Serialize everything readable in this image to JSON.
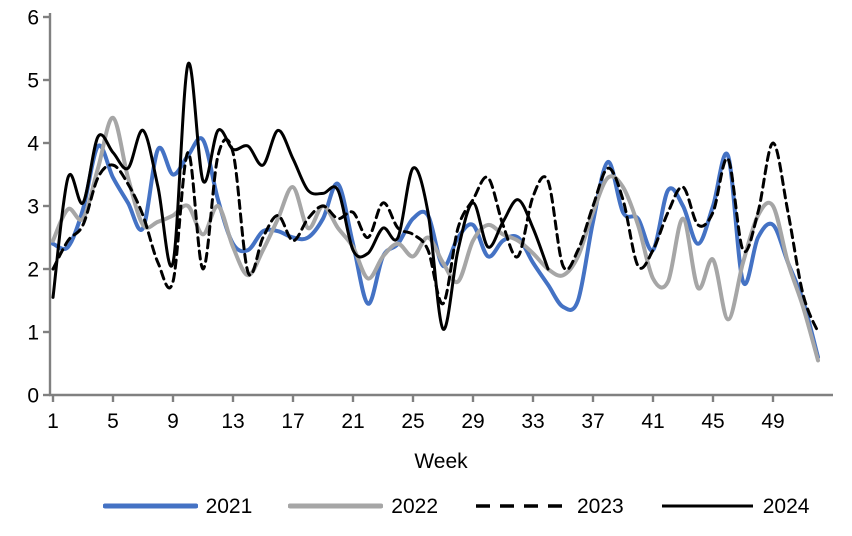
{
  "chart_data": {
    "type": "line",
    "title": "",
    "xlabel": "Week",
    "ylabel": "",
    "xlim": [
      1,
      52
    ],
    "ylim": [
      0,
      6
    ],
    "x_ticks": [
      1,
      5,
      9,
      13,
      17,
      21,
      25,
      29,
      33,
      37,
      41,
      45,
      49
    ],
    "y_ticks": [
      0,
      1,
      2,
      3,
      4,
      5,
      6
    ],
    "grid": false,
    "legend_position": "bottom",
    "axis_color": "#808080",
    "text_color": "#000000",
    "series": [
      {
        "name": "2021",
        "color": "#4472C4",
        "style": "solid",
        "width": 4,
        "values": [
          2.4,
          2.35,
          2.95,
          3.95,
          3.45,
          3.05,
          2.65,
          3.9,
          3.5,
          3.8,
          4.05,
          3.1,
          2.4,
          2.3,
          2.6,
          2.6,
          2.5,
          2.5,
          2.8,
          3.35,
          2.4,
          1.45,
          2.2,
          2.4,
          2.8,
          2.85,
          2.05,
          2.5,
          2.7,
          2.2,
          2.45,
          2.5,
          2.1,
          1.75,
          1.4,
          1.5,
          2.75,
          3.7,
          2.9,
          2.8,
          2.3,
          3.25,
          3.0,
          2.4,
          3.0,
          3.8,
          1.8,
          2.5,
          2.7,
          2.1,
          1.5,
          0.6
        ]
      },
      {
        "name": "2022",
        "color": "#A6A6A6",
        "style": "solid",
        "width": 4,
        "values": [
          2.45,
          2.95,
          2.8,
          3.6,
          4.4,
          3.45,
          2.7,
          2.75,
          2.85,
          3.0,
          2.55,
          3.0,
          2.35,
          1.9,
          2.3,
          2.8,
          3.3,
          2.65,
          3.0,
          2.65,
          2.35,
          1.85,
          2.2,
          2.4,
          2.2,
          2.5,
          2.1,
          1.8,
          2.45,
          2.7,
          2.55,
          2.45,
          2.25,
          2.0,
          1.9,
          2.2,
          2.9,
          3.45,
          3.3,
          2.7,
          1.85,
          1.8,
          2.8,
          1.7,
          2.15,
          1.2,
          2.1,
          2.85,
          3.0,
          2.1,
          1.4,
          0.55
        ]
      },
      {
        "name": "2023",
        "color": "#000000",
        "style": "dashed",
        "width": 3,
        "values": [
          2.0,
          2.45,
          2.7,
          3.45,
          3.65,
          3.35,
          2.85,
          2.1,
          1.8,
          3.85,
          2.0,
          3.8,
          3.85,
          1.95,
          2.5,
          2.85,
          2.45,
          2.8,
          3.0,
          2.8,
          2.9,
          2.5,
          3.05,
          2.65,
          2.55,
          2.3,
          1.45,
          2.65,
          3.1,
          3.45,
          2.7,
          2.2,
          3.15,
          3.4,
          2.05,
          2.3,
          3.0,
          3.6,
          3.1,
          2.05,
          2.3,
          2.9,
          3.3,
          2.7,
          2.9,
          3.75,
          2.3,
          2.9,
          4.0,
          2.9,
          1.6,
          1.0
        ]
      },
      {
        "name": "2024",
        "color": "#000000",
        "style": "solid",
        "width": 3,
        "values": [
          1.55,
          3.45,
          3.05,
          4.1,
          3.85,
          3.6,
          4.2,
          3.3,
          2.1,
          5.25,
          3.4,
          4.2,
          3.9,
          3.95,
          3.65,
          4.2,
          3.75,
          3.25,
          3.2,
          3.25,
          2.3,
          2.25,
          2.65,
          2.5,
          3.6,
          2.9,
          1.05,
          2.3,
          3.05,
          2.35,
          2.75,
          3.1,
          2.65,
          2.0
        ]
      }
    ]
  }
}
